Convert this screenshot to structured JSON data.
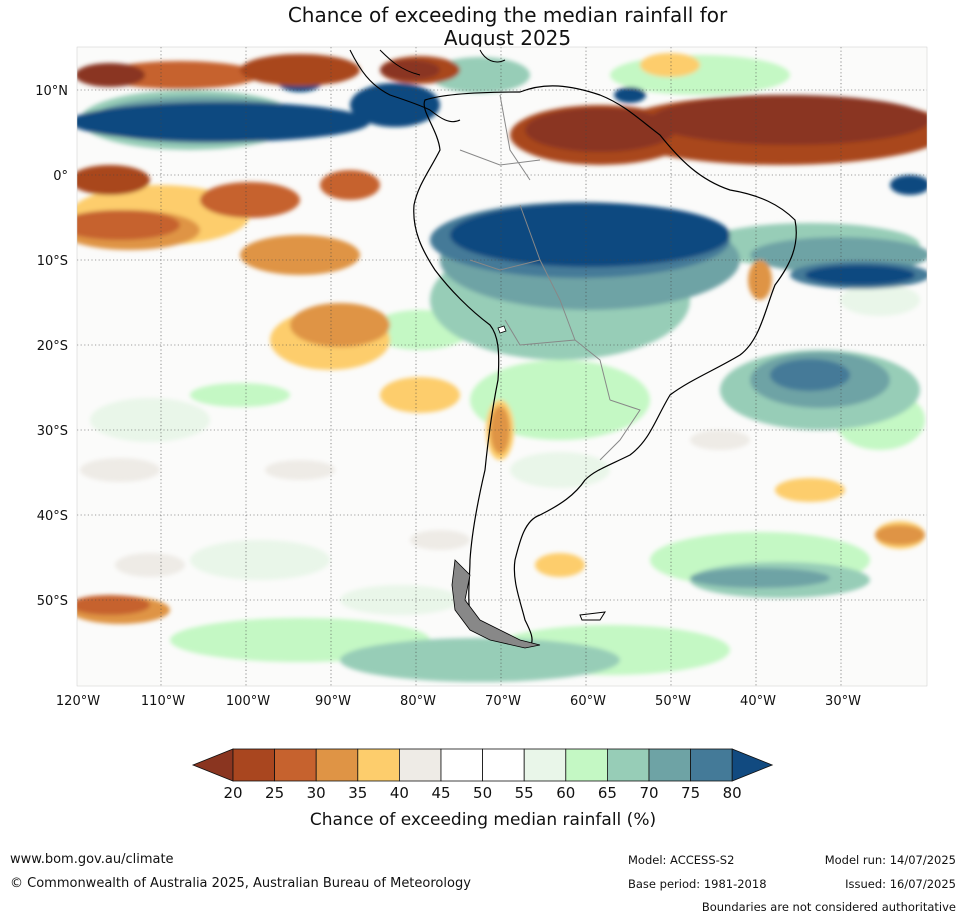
{
  "title": {
    "line1": "Chance of exceeding the median rainfall for",
    "line2": "August 2025"
  },
  "map": {
    "lat_labels": [
      "10°N",
      "0°",
      "10°S",
      "20°S",
      "30°S",
      "40°S",
      "50°S"
    ],
    "lon_labels": [
      "120°W",
      "110°W",
      "100°W",
      "90°W",
      "80°W",
      "70°W",
      "60°W",
      "50°W",
      "40°W",
      "30°W"
    ]
  },
  "colorbar": {
    "ticks": [
      "20",
      "25",
      "30",
      "35",
      "40",
      "45",
      "50",
      "55",
      "60",
      "65",
      "70",
      "75",
      "80"
    ],
    "label": "Chance of exceeding median rainfall (%)",
    "colors": [
      "#8a3520",
      "#a9461f",
      "#c6622e",
      "#df9445",
      "#fdcd6c",
      "#eeebe6",
      "#ffffff",
      "#ffffff",
      "#e9f6e9",
      "#c4f8c4",
      "#97cdb7",
      "#6ea3a5",
      "#447a98",
      "#114a80"
    ]
  },
  "footer": {
    "website": "www.bom.gov.au/climate",
    "copyright": "© Commonwealth of Australia 2025, Australian Bureau of Meteorology",
    "model": "Model: ACCESS-S2",
    "base_period": "Base period: 1981-2018",
    "model_run": "Model run: 14/07/2025",
    "issued": "Issued: 16/07/2025",
    "disclaimer": "Boundaries are not considered authoritative"
  }
}
